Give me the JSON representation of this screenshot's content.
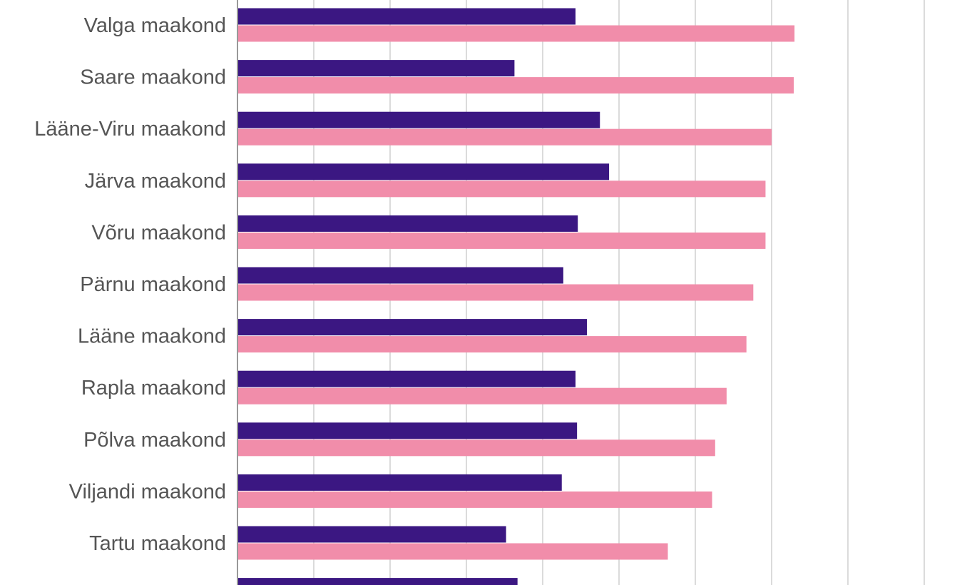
{
  "chart_data": {
    "type": "bar",
    "orientation": "horizontal",
    "title": "",
    "xlabel": "",
    "ylabel": "",
    "grid": true,
    "xlim": [
      0,
      9
    ],
    "categories": [
      "Valga maakond",
      "Saare maakond",
      "Lääne-Viru maakond",
      "Järva maakond",
      "Võru maakond",
      "Pärnu maakond",
      "Lääne maakond",
      "Rapla maakond",
      "Põlva maakond",
      "Viljandi maakond",
      "Tartu maakond",
      ""
    ],
    "series": [
      {
        "color": "#3b1782",
        "values": [
          4.43,
          3.63,
          4.75,
          4.87,
          4.46,
          4.27,
          4.58,
          4.43,
          4.45,
          4.25,
          3.52,
          3.67
        ]
      },
      {
        "color": "#f18daa",
        "values": [
          7.3,
          7.29,
          7.0,
          6.92,
          6.92,
          6.76,
          6.67,
          6.41,
          6.26,
          6.22,
          5.64,
          null
        ]
      }
    ]
  }
}
